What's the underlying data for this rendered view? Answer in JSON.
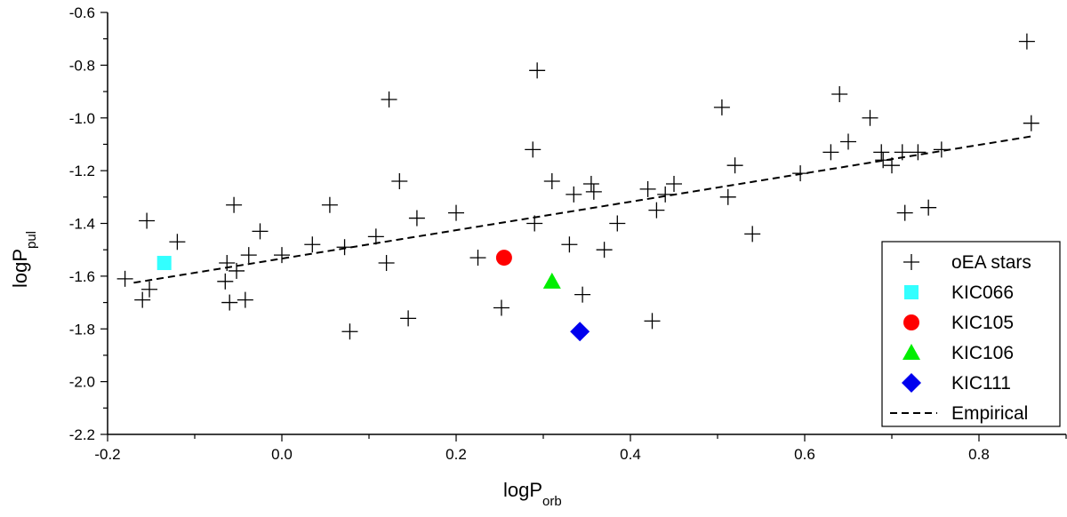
{
  "chart_data": {
    "type": "scatter",
    "xlabel": {
      "main": "logP",
      "sub": "orb"
    },
    "ylabel": {
      "main": "logP",
      "sub": "pul"
    },
    "xlim": [
      -0.2,
      0.9
    ],
    "ylim": [
      -2.2,
      -0.6
    ],
    "x_major_ticks": [
      -0.2,
      0.0,
      0.2,
      0.4,
      0.6,
      0.8
    ],
    "x_tick_labels": [
      "-0.2",
      "0.0",
      "0.2",
      "0.4",
      "0.6",
      "0.8"
    ],
    "y_major_ticks": [
      -2.2,
      -2.0,
      -1.8,
      -1.6,
      -1.4,
      -1.2,
      -1.0,
      -0.8,
      -0.6
    ],
    "y_tick_labels": [
      "-2.2",
      "-2.0",
      "-1.8",
      "-1.6",
      "-1.4",
      "-1.2",
      "-1.0",
      "-0.8",
      "-0.6"
    ],
    "x_minor_step": 0.1,
    "y_minor_step": 0.1,
    "grid": false,
    "legend_position": "bottom-right",
    "series": [
      {
        "name": "oEA stars",
        "marker": "plus",
        "color": "#000000",
        "points": [
          [
            -0.18,
            -1.61
          ],
          [
            -0.16,
            -1.69
          ],
          [
            -0.155,
            -1.39
          ],
          [
            -0.152,
            -1.65
          ],
          [
            -0.12,
            -1.47
          ],
          [
            -0.065,
            -1.62
          ],
          [
            -0.063,
            -1.55
          ],
          [
            -0.06,
            -1.7
          ],
          [
            -0.055,
            -1.33
          ],
          [
            -0.052,
            -1.58
          ],
          [
            -0.042,
            -1.69
          ],
          [
            -0.038,
            -1.52
          ],
          [
            -0.025,
            -1.43
          ],
          [
            0.0,
            -1.52
          ],
          [
            0.035,
            -1.48
          ],
          [
            0.055,
            -1.33
          ],
          [
            0.072,
            -1.49
          ],
          [
            0.078,
            -1.81
          ],
          [
            0.108,
            -1.45
          ],
          [
            0.12,
            -1.55
          ],
          [
            0.123,
            -0.93
          ],
          [
            0.135,
            -1.24
          ],
          [
            0.145,
            -1.76
          ],
          [
            0.155,
            -1.38
          ],
          [
            0.2,
            -1.36
          ],
          [
            0.225,
            -1.53
          ],
          [
            0.252,
            -1.72
          ],
          [
            0.288,
            -1.12
          ],
          [
            0.29,
            -1.4
          ],
          [
            0.293,
            -0.82
          ],
          [
            0.31,
            -1.24
          ],
          [
            0.33,
            -1.48
          ],
          [
            0.335,
            -1.29
          ],
          [
            0.345,
            -1.67
          ],
          [
            0.355,
            -1.25
          ],
          [
            0.358,
            -1.28
          ],
          [
            0.37,
            -1.5
          ],
          [
            0.385,
            -1.4
          ],
          [
            0.42,
            -1.27
          ],
          [
            0.425,
            -1.77
          ],
          [
            0.43,
            -1.35
          ],
          [
            0.44,
            -1.29
          ],
          [
            0.45,
            -1.25
          ],
          [
            0.505,
            -0.96
          ],
          [
            0.512,
            -1.3
          ],
          [
            0.52,
            -1.18
          ],
          [
            0.54,
            -1.44
          ],
          [
            0.595,
            -1.21
          ],
          [
            0.63,
            -1.13
          ],
          [
            0.64,
            -0.91
          ],
          [
            0.65,
            -1.09
          ],
          [
            0.675,
            -1.0
          ],
          [
            0.688,
            -1.13
          ],
          [
            0.69,
            -1.16
          ],
          [
            0.7,
            -1.18
          ],
          [
            0.712,
            -1.13
          ],
          [
            0.715,
            -1.36
          ],
          [
            0.73,
            -1.13
          ],
          [
            0.742,
            -1.34
          ],
          [
            0.757,
            -1.12
          ],
          [
            0.855,
            -0.71
          ],
          [
            0.86,
            -1.02
          ]
        ]
      },
      {
        "name": "KIC066",
        "marker": "square",
        "color": "#33ffff",
        "points": [
          [
            -0.135,
            -1.55
          ]
        ]
      },
      {
        "name": "KIC105",
        "marker": "circle",
        "color": "#ff0000",
        "points": [
          [
            0.255,
            -1.53
          ]
        ]
      },
      {
        "name": "KIC106",
        "marker": "triangle",
        "color": "#00ee00",
        "points": [
          [
            0.31,
            -1.62
          ]
        ]
      },
      {
        "name": "KIC111",
        "marker": "diamond",
        "color": "#0000ee",
        "points": [
          [
            0.342,
            -1.81
          ]
        ]
      },
      {
        "name": "Empirical",
        "marker": "dashed-line",
        "color": "#000000",
        "points": [
          [
            -0.17,
            -1.625
          ],
          [
            0.86,
            -1.07
          ]
        ]
      }
    ]
  }
}
